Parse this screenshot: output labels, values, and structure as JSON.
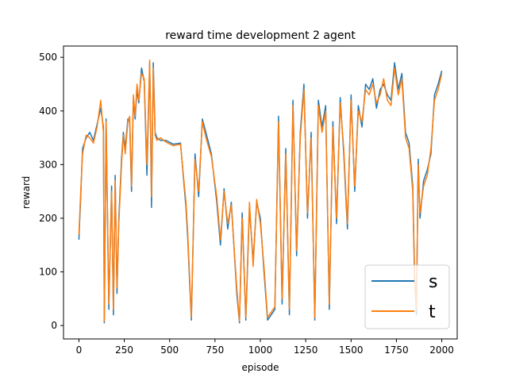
{
  "chart_data": {
    "type": "line",
    "title": "reward time development 2 agent",
    "xlabel": "episode",
    "ylabel": "reward",
    "xlim": [
      -85,
      2085
    ],
    "ylim": [
      -25,
      521
    ],
    "xticks": [
      0,
      250,
      500,
      750,
      1000,
      1250,
      1500,
      1750,
      2000
    ],
    "yticks": [
      0,
      100,
      200,
      300,
      400,
      500
    ],
    "grid": false,
    "legend": "lower-right",
    "series": [
      {
        "name": "s",
        "color": "#1f77b4",
        "x": [
          0,
          10,
          20,
          40,
          60,
          80,
          100,
          120,
          135,
          140,
          150,
          165,
          180,
          190,
          200,
          210,
          220,
          235,
          245,
          255,
          270,
          280,
          290,
          300,
          310,
          320,
          330,
          345,
          360,
          375,
          390,
          400,
          410,
          420,
          430,
          450,
          480,
          520,
          560,
          590,
          600,
          610,
          620,
          640,
          660,
          680,
          700,
          730,
          760,
          780,
          800,
          820,
          840,
          870,
          885,
          900,
          920,
          940,
          960,
          980,
          1000,
          1020,
          1040,
          1060,
          1080,
          1100,
          1120,
          1140,
          1160,
          1180,
          1200,
          1220,
          1240,
          1260,
          1280,
          1300,
          1320,
          1340,
          1360,
          1380,
          1400,
          1420,
          1440,
          1460,
          1480,
          1500,
          1520,
          1540,
          1560,
          1580,
          1600,
          1620,
          1640,
          1660,
          1680,
          1700,
          1720,
          1740,
          1760,
          1780,
          1800,
          1820,
          1840,
          1850,
          1860,
          1870,
          1880,
          1900,
          1920,
          1940,
          1960,
          1980,
          2000
        ],
        "values": [
          160,
          240,
          330,
          350,
          360,
          345,
          375,
          405,
          370,
          5,
          385,
          30,
          260,
          20,
          280,
          60,
          200,
          310,
          360,
          330,
          385,
          380,
          250,
          420,
          385,
          440,
          415,
          480,
          455,
          280,
          490,
          220,
          490,
          360,
          350,
          345,
          345,
          338,
          340,
          220,
          160,
          80,
          10,
          320,
          240,
          385,
          360,
          320,
          230,
          150,
          255,
          180,
          230,
          60,
          5,
          210,
          10,
          220,
          120,
          230,
          200,
          100,
          10,
          20,
          30,
          390,
          40,
          330,
          20,
          420,
          130,
          360,
          450,
          200,
          360,
          10,
          420,
          370,
          410,
          30,
          380,
          190,
          425,
          320,
          180,
          430,
          250,
          410,
          370,
          450,
          440,
          460,
          405,
          440,
          450,
          430,
          420,
          490,
          440,
          470,
          360,
          340,
          260,
          95,
          20,
          310,
          200,
          270,
          290,
          320,
          430,
          450,
          475
        ]
      },
      {
        "name": "t",
        "color": "#ff7f0e",
        "x": [
          0,
          10,
          20,
          40,
          60,
          80,
          100,
          120,
          135,
          140,
          150,
          165,
          180,
          190,
          200,
          210,
          220,
          235,
          245,
          255,
          270,
          280,
          290,
          300,
          310,
          320,
          330,
          345,
          360,
          375,
          390,
          400,
          410,
          420,
          430,
          450,
          480,
          520,
          560,
          590,
          600,
          610,
          620,
          640,
          660,
          680,
          700,
          730,
          760,
          780,
          800,
          820,
          840,
          870,
          885,
          900,
          920,
          940,
          960,
          980,
          1000,
          1020,
          1040,
          1060,
          1080,
          1100,
          1120,
          1140,
          1160,
          1180,
          1200,
          1220,
          1240,
          1260,
          1280,
          1300,
          1320,
          1340,
          1360,
          1380,
          1400,
          1420,
          1440,
          1460,
          1480,
          1500,
          1520,
          1540,
          1560,
          1580,
          1600,
          1620,
          1640,
          1660,
          1680,
          1700,
          1720,
          1740,
          1760,
          1780,
          1800,
          1820,
          1840,
          1850,
          1860,
          1870,
          1880,
          1900,
          1920,
          1940,
          1960,
          1980,
          2000
        ],
        "values": [
          170,
          250,
          320,
          355,
          350,
          340,
          370,
          420,
          360,
          8,
          380,
          40,
          250,
          30,
          270,
          70,
          190,
          300,
          355,
          320,
          380,
          390,
          260,
          430,
          390,
          450,
          420,
          470,
          460,
          300,
          495,
          240,
          480,
          355,
          345,
          350,
          342,
          335,
          338,
          230,
          170,
          90,
          15,
          310,
          250,
          380,
          350,
          315,
          240,
          160,
          250,
          190,
          225,
          70,
          8,
          200,
          15,
          230,
          110,
          235,
          190,
          110,
          15,
          25,
          35,
          380,
          50,
          320,
          30,
          410,
          140,
          350,
          440,
          210,
          350,
          15,
          410,
          360,
          400,
          40,
          370,
          200,
          415,
          330,
          190,
          420,
          260,
          400,
          380,
          440,
          430,
          450,
          415,
          430,
          460,
          420,
          410,
          480,
          430,
          460,
          350,
          330,
          250,
          80,
          30,
          300,
          210,
          260,
          280,
          330,
          420,
          440,
          470
        ]
      }
    ]
  }
}
